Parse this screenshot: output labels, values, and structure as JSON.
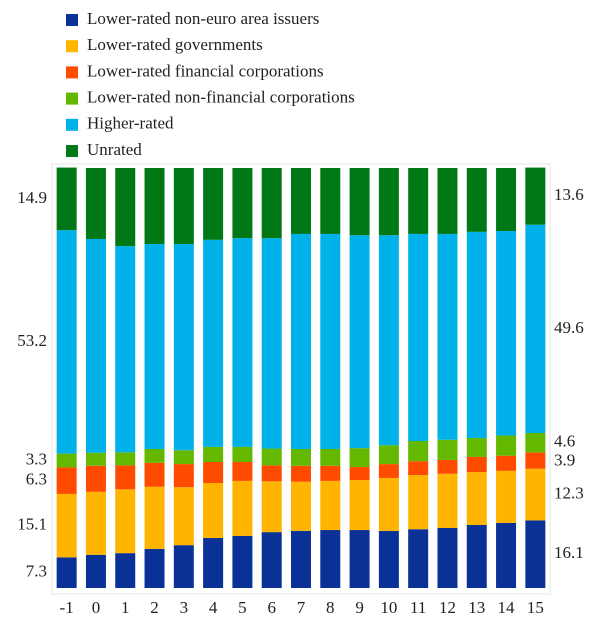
{
  "chart_data": {
    "type": "stacked_bar_100",
    "categories": [
      "-1",
      "0",
      "1",
      "2",
      "3",
      "4",
      "5",
      "6",
      "7",
      "8",
      "9",
      "10",
      "11",
      "12",
      "13",
      "14",
      "15"
    ],
    "ylim": [
      0,
      100
    ],
    "series": [
      {
        "name": "Lower-rated non-euro area issuers",
        "color": "#0a3296",
        "values": [
          7.3,
          7.9,
          8.3,
          9.3,
          10.2,
          11.9,
          12.4,
          13.3,
          13.6,
          13.8,
          13.8,
          13.6,
          14.0,
          14.3,
          15.0,
          15.5,
          16.1
        ]
      },
      {
        "name": "Lower-rated governments",
        "color": "#ffb400",
        "values": [
          15.1,
          15.0,
          15.2,
          14.8,
          13.8,
          13.1,
          13.1,
          12.1,
          11.7,
          11.7,
          11.9,
          12.6,
          12.9,
          12.9,
          12.6,
          12.4,
          12.3
        ]
      },
      {
        "name": "Lower-rated financial corporations",
        "color": "#ff4b00",
        "values": [
          6.3,
          6.2,
          5.7,
          5.7,
          5.5,
          5.0,
          4.5,
          3.8,
          3.8,
          3.6,
          3.1,
          3.3,
          3.3,
          3.3,
          3.6,
          3.6,
          3.9
        ]
      },
      {
        "name": "Lower-rated non-financial corporations",
        "color": "#65b800",
        "values": [
          3.3,
          3.1,
          3.1,
          3.3,
          3.3,
          3.6,
          3.6,
          4.0,
          4.0,
          4.0,
          4.5,
          4.5,
          4.8,
          4.8,
          4.5,
          4.8,
          4.6
        ]
      },
      {
        "name": "Higher-rated",
        "color": "#00b1ea",
        "values": [
          53.2,
          50.9,
          49.1,
          48.8,
          49.1,
          49.3,
          49.7,
          50.1,
          51.2,
          51.2,
          50.7,
          50.0,
          49.3,
          49.0,
          49.1,
          48.7,
          49.6
        ]
      },
      {
        "name": "Unrated",
        "color": "#007816",
        "values": [
          14.9,
          16.9,
          18.6,
          18.1,
          18.1,
          17.1,
          16.7,
          16.7,
          15.7,
          15.7,
          16.0,
          16.0,
          15.7,
          15.7,
          15.2,
          15.0,
          13.6
        ]
      }
    ]
  }
}
